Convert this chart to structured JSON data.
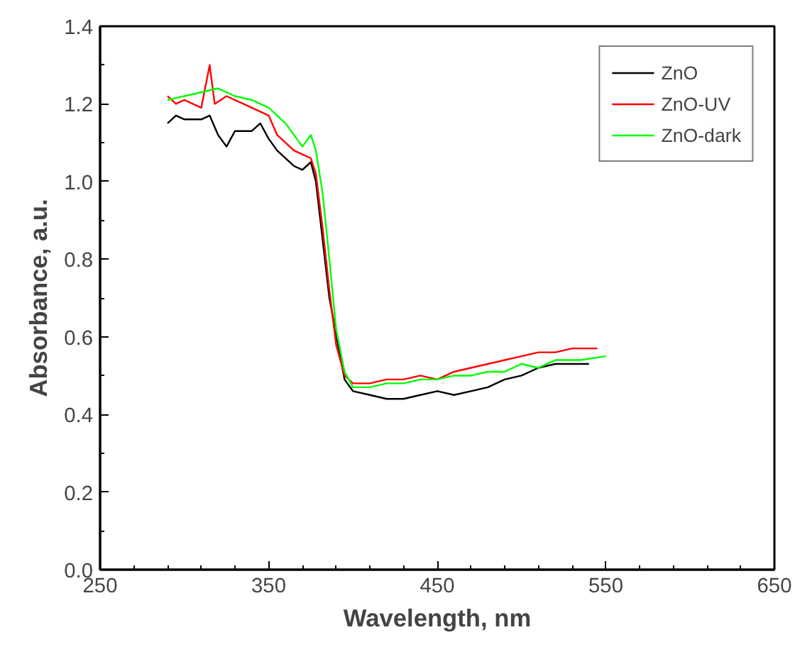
{
  "chart_data": {
    "type": "line",
    "xlabel": "Wavelength, nm",
    "ylabel": "Absorbance, a.u.",
    "xlim": [
      250,
      650
    ],
    "ylim": [
      0,
      1.4
    ],
    "xticks": [
      250,
      {
        "value": 270,
        "label": null
      },
      {
        "value": 290,
        "label": null
      },
      {
        "value": 310,
        "label": null
      },
      {
        "value": 330,
        "label": null
      },
      350,
      {
        "value": 370,
        "label": null
      },
      {
        "value": 390,
        "label": null
      },
      {
        "value": 410,
        "label": null
      },
      {
        "value": 430,
        "label": null
      },
      450,
      {
        "value": 470,
        "label": null
      },
      {
        "value": 490,
        "label": null
      },
      {
        "value": 510,
        "label": null
      },
      {
        "value": 530,
        "label": null
      },
      550,
      {
        "value": 570,
        "label": null
      },
      {
        "value": 590,
        "label": null
      },
      {
        "value": 610,
        "label": null
      },
      {
        "value": 630,
        "label": null
      },
      650
    ],
    "yticks": [
      {
        "value": 0,
        "label": "0.0"
      },
      {
        "value": 0.1,
        "label": null
      },
      0.2,
      {
        "value": 0.3,
        "label": null
      },
      0.4,
      {
        "value": 0.5,
        "label": null
      },
      0.6,
      {
        "value": 0.7,
        "label": null
      },
      0.8,
      {
        "value": 0.9,
        "label": null
      },
      {
        "value": 1.0,
        "label": "1.0"
      },
      {
        "value": 1.1,
        "label": null
      },
      1.2,
      {
        "value": 1.3,
        "label": null
      },
      1.4
    ],
    "grid": false,
    "legend": "top right",
    "marker": "none",
    "line_style": "solid",
    "series": [
      {
        "name": "ZnO",
        "color": "#000000",
        "x": [
          290,
          295,
          300,
          310,
          315,
          320,
          325,
          330,
          340,
          345,
          350,
          355,
          360,
          365,
          370,
          375,
          378,
          382,
          386,
          395,
          400,
          410,
          420,
          430,
          440,
          450,
          460,
          470,
          480,
          490,
          500,
          510,
          520,
          540
        ],
        "values": [
          1.15,
          1.17,
          1.16,
          1.16,
          1.17,
          1.12,
          1.09,
          1.13,
          1.13,
          1.15,
          1.11,
          1.08,
          1.06,
          1.04,
          1.03,
          1.05,
          1.0,
          0.85,
          0.7,
          0.49,
          0.46,
          0.45,
          0.44,
          0.44,
          0.45,
          0.46,
          0.45,
          0.46,
          0.47,
          0.49,
          0.5,
          0.52,
          0.53,
          0.53
        ]
      },
      {
        "name": "ZnO-UV",
        "color": "#ff0000",
        "x": [
          290,
          295,
          300,
          310,
          315,
          318,
          325,
          335,
          345,
          350,
          355,
          360,
          365,
          370,
          375,
          378,
          382,
          386,
          390,
          395,
          400,
          410,
          420,
          430,
          440,
          450,
          460,
          470,
          480,
          490,
          500,
          510,
          520,
          530,
          545
        ],
        "values": [
          1.22,
          1.2,
          1.21,
          1.19,
          1.3,
          1.2,
          1.22,
          1.2,
          1.18,
          1.17,
          1.12,
          1.1,
          1.08,
          1.07,
          1.06,
          1.02,
          0.88,
          0.72,
          0.58,
          0.5,
          0.48,
          0.48,
          0.49,
          0.49,
          0.5,
          0.49,
          0.51,
          0.52,
          0.53,
          0.54,
          0.55,
          0.56,
          0.56,
          0.57,
          0.57
        ]
      },
      {
        "name": "ZnO-dark",
        "color": "#00ff00",
        "x": [
          290,
          300,
          310,
          320,
          330,
          340,
          350,
          360,
          370,
          375,
          378,
          382,
          386,
          390,
          395,
          400,
          410,
          420,
          430,
          440,
          450,
          460,
          470,
          480,
          490,
          500,
          510,
          520,
          535,
          550
        ],
        "values": [
          1.21,
          1.22,
          1.23,
          1.24,
          1.22,
          1.21,
          1.19,
          1.15,
          1.09,
          1.12,
          1.08,
          0.97,
          0.8,
          0.62,
          0.51,
          0.47,
          0.47,
          0.48,
          0.48,
          0.49,
          0.49,
          0.5,
          0.5,
          0.51,
          0.51,
          0.53,
          0.52,
          0.54,
          0.54,
          0.55
        ]
      }
    ]
  }
}
